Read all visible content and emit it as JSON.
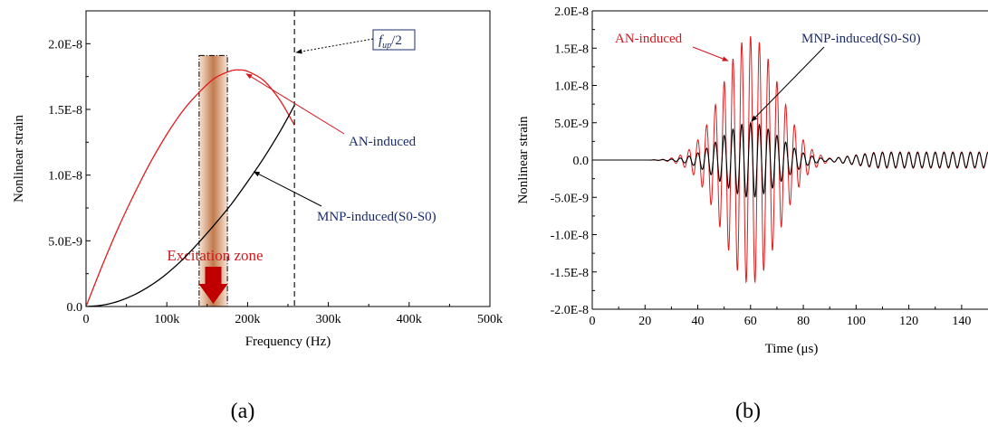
{
  "colors": {
    "an": "#e31a1c",
    "mnp": "#000000",
    "annot_red": "#d3171e",
    "annot_blue": "#1b2c6b",
    "arrow": "#c00000"
  },
  "chart_data": [
    {
      "type": "line",
      "panel_label": "(a)",
      "xlabel": "Frequency (Hz)",
      "ylabel": "Nonlinear  strain",
      "xlim": [
        0,
        500000
      ],
      "ylim": [
        0,
        2.25e-08
      ],
      "xticks": [
        {
          "v": 0,
          "label": "0"
        },
        {
          "v": 100000,
          "label": "100k"
        },
        {
          "v": 200000,
          "label": "200k"
        },
        {
          "v": 300000,
          "label": "300k"
        },
        {
          "v": 400000,
          "label": "400k"
        },
        {
          "v": 500000,
          "label": "500k"
        }
      ],
      "yticks": [
        {
          "v": 0,
          "label": "0.0"
        },
        {
          "v": 5e-09,
          "label": "5.0E-9"
        },
        {
          "v": 1e-08,
          "label": "1.0E-8"
        },
        {
          "v": 1.5e-08,
          "label": "1.5E-8"
        },
        {
          "v": 2e-08,
          "label": "2.0E-8"
        }
      ],
      "series": [
        {
          "name": "AN-induced",
          "x": [
            0,
            20000,
            40000,
            60000,
            80000,
            100000,
            120000,
            140000,
            160000,
            180000,
            190000,
            200000,
            220000,
            240000,
            258000
          ],
          "values": [
            0,
            3.1e-09,
            6e-09,
            8.6e-09,
            1.1e-08,
            1.31e-08,
            1.49e-08,
            1.63e-08,
            1.74e-08,
            1.795e-08,
            1.8e-08,
            1.79e-08,
            1.72e-08,
            1.57e-08,
            1.38e-08
          ]
        },
        {
          "name": "MNP-induced(S0-S0)",
          "x": [
            0,
            20000,
            40000,
            60000,
            80000,
            100000,
            120000,
            140000,
            160000,
            180000,
            200000,
            220000,
            240000,
            258000
          ],
          "values": [
            0,
            1e-10,
            4e-10,
            9e-10,
            1.6e-09,
            2.5e-09,
            3.6e-09,
            4.9e-09,
            6.3e-09,
            7.8e-09,
            9.5e-09,
            1.13e-08,
            1.33e-08,
            1.53e-08
          ]
        }
      ],
      "excitation_zone": {
        "label": "Excitation zone",
        "x_range": [
          140000,
          175000
        ]
      },
      "cutoff": {
        "label_f": "f",
        "label_sub": "up",
        "label_rest": "/2",
        "x": 258000
      },
      "annotations": {
        "an": "AN-induced",
        "mnp": "MNP-induced(S0-S0)"
      }
    },
    {
      "type": "line",
      "panel_label": "(b)",
      "xlabel": "Time (μs)",
      "ylabel": "Nonlinear strain",
      "xlim": [
        0,
        150
      ],
      "ylim": [
        -2e-08,
        2e-08
      ],
      "xticks": [
        {
          "v": 0,
          "label": "0"
        },
        {
          "v": 20,
          "label": "20"
        },
        {
          "v": 40,
          "label": "40"
        },
        {
          "v": 60,
          "label": "60"
        },
        {
          "v": 80,
          "label": "80"
        },
        {
          "v": 100,
          "label": "100"
        },
        {
          "v": 120,
          "label": "120"
        },
        {
          "v": 140,
          "label": "140"
        }
      ],
      "yticks": [
        {
          "v": -2e-08,
          "label": "-2.0E-8"
        },
        {
          "v": -1.5e-08,
          "label": "-1.5E-8"
        },
        {
          "v": -1e-08,
          "label": "-1.0E-8"
        },
        {
          "v": -5e-09,
          "label": "-5.0E-9"
        },
        {
          "v": 0,
          "label": "0.0"
        },
        {
          "v": 5e-09,
          "label": "5.0E-9"
        },
        {
          "v": 1e-08,
          "label": "1.0E-8"
        },
        {
          "v": 1.5e-08,
          "label": "1.5E-8"
        },
        {
          "v": 2e-08,
          "label": "2.0E-8"
        }
      ],
      "series": [
        {
          "name": "AN-induced",
          "center_us": 60,
          "sigma_us": 10.5,
          "amplitude": 1.66e-08,
          "frequency_mhz": 0.3,
          "tail": {
            "start_us": 86,
            "amplitude": 1.1e-09
          }
        },
        {
          "name": "MNP-induced(S0-S0)",
          "center_us": 60,
          "sigma_us": 11,
          "amplitude": 5e-09,
          "frequency_mhz": 0.3,
          "tail": {
            "start_us": 86,
            "amplitude": 1e-09
          }
        }
      ],
      "annotations": {
        "an": "AN-induced",
        "mnp": "MNP-induced(S0-S0)"
      }
    }
  ]
}
